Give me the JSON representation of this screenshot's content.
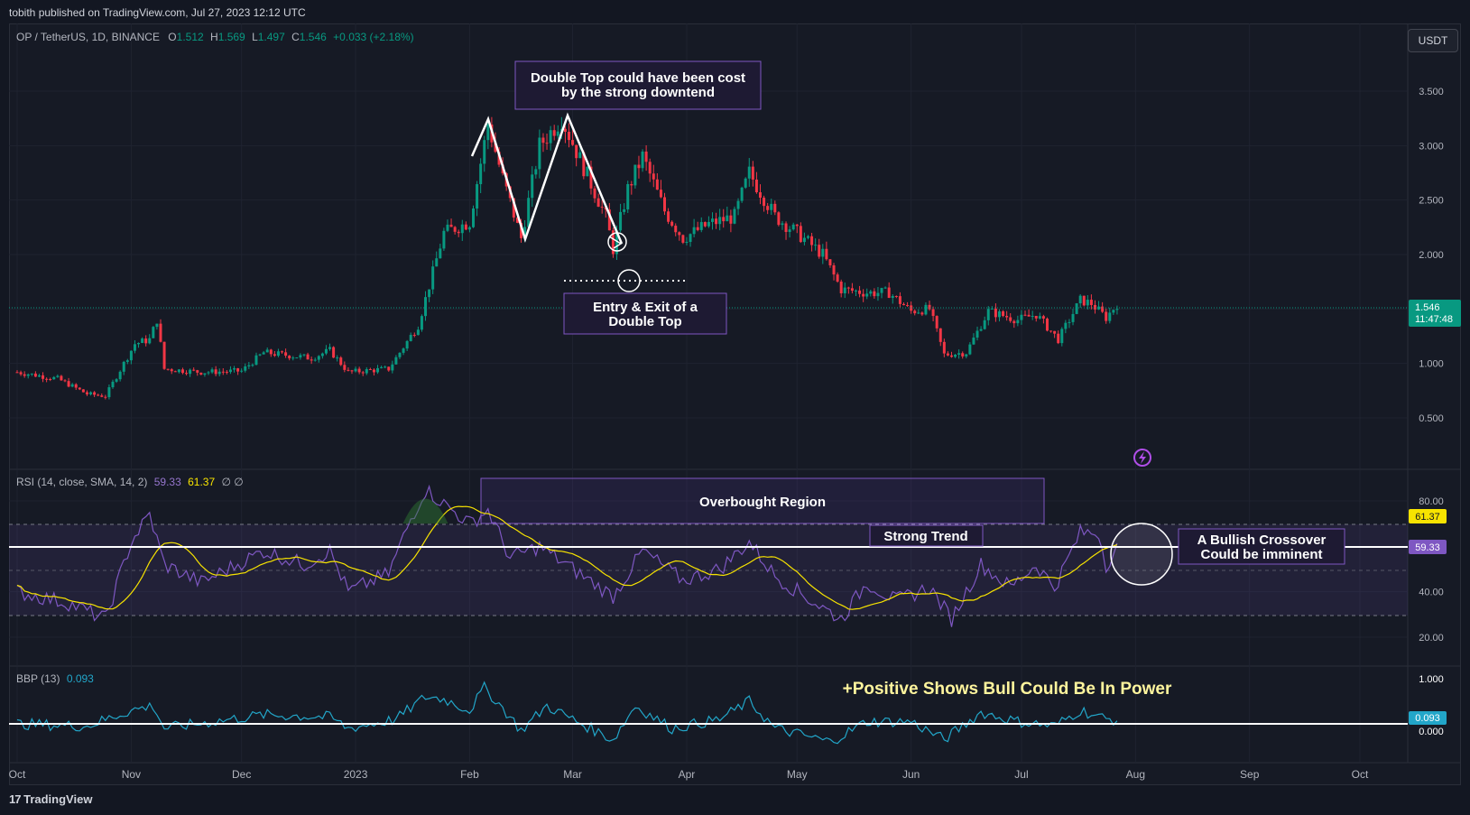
{
  "header": {
    "publisher": "tobith published on TradingView.com, Jul 27, 2023 12:12 UTC"
  },
  "symbol": {
    "name": "OP / TetherUS, 1D, BINANCE",
    "open_label": "O",
    "open": "1.512",
    "high_label": "H",
    "high": "1.569",
    "low_label": "L",
    "low": "1.497",
    "close_label": "C",
    "close": "1.546",
    "change": "+0.033 (+2.18%)"
  },
  "currency": "USDT",
  "price_badge": {
    "price": "1.546",
    "countdown": "11:47:48"
  },
  "annotations": {
    "double_top": "Double Top could have been cost by the strong downtend",
    "double_top_line1": "Double Top could have been cost",
    "double_top_line2": "by the strong downtend",
    "entry_exit_line1": "Entry & Exit of a",
    "entry_exit_line2": "Double Top",
    "overbought": "Overbought Region",
    "strong_trend": "Strong Trend",
    "crossover_line1": "A Bullish Crossover",
    "crossover_line2": "Could be imminent",
    "bbp_note": "+Positive Shows Bull Could Be In Power"
  },
  "rsi_legend": {
    "label": "RSI (14, close, SMA, 14, 2)",
    "value": "59.33",
    "ma": "61.37",
    "extra": "∅ ∅"
  },
  "bbp_legend": {
    "label": "BBP (13)",
    "value": "0.093"
  },
  "footer": {
    "brand": "TradingView"
  },
  "colors": {
    "up": "#089981",
    "down": "#f23645",
    "rsi": "#7e57c2",
    "rsi_ma": "#f7e300",
    "bbp": "#22a6c9",
    "bg": "#161a25"
  },
  "chart_data": [
    {
      "type": "candlestick",
      "title": "OP / TetherUS, 1D, BINANCE",
      "x_ticks": [
        "Oct",
        "Nov",
        "Dec",
        "2023",
        "Feb",
        "Mar",
        "Apr",
        "May",
        "Jun",
        "Jul",
        "Aug",
        "Sep",
        "Oct"
      ],
      "y_ticks": [
        "0.500",
        "1.000",
        "1.500",
        "2.000",
        "2.500",
        "3.000",
        "3.500"
      ],
      "ylim": [
        0.2,
        3.8
      ],
      "last_price": 1.546,
      "anchors": [
        [
          "2022-10-01",
          0.92
        ],
        [
          "2022-10-12",
          0.86
        ],
        [
          "2022-10-20",
          0.72
        ],
        [
          "2022-10-25",
          0.7
        ],
        [
          "2022-11-02",
          1.18
        ],
        [
          "2022-11-06",
          1.22
        ],
        [
          "2022-11-08",
          1.4
        ],
        [
          "2022-11-10",
          0.95
        ],
        [
          "2022-11-20",
          0.92
        ],
        [
          "2022-12-01",
          0.93
        ],
        [
          "2022-12-07",
          1.1
        ],
        [
          "2022-12-20",
          1.05
        ],
        [
          "2022-12-25",
          1.12
        ],
        [
          "2022-12-30",
          0.92
        ],
        [
          "2023-01-10",
          0.95
        ],
        [
          "2023-01-18",
          1.35
        ],
        [
          "2023-01-25",
          2.2
        ],
        [
          "2023-02-01",
          2.3
        ],
        [
          "2023-02-06",
          3.2
        ],
        [
          "2023-02-10",
          2.7
        ],
        [
          "2023-02-15",
          2.15
        ],
        [
          "2023-02-20",
          3.0
        ],
        [
          "2023-02-26",
          3.25
        ],
        [
          "2023-03-04",
          2.8
        ],
        [
          "2023-03-10",
          2.35
        ],
        [
          "2023-03-12",
          2.05
        ],
        [
          "2023-03-16",
          2.6
        ],
        [
          "2023-03-20",
          2.9
        ],
        [
          "2023-03-26",
          2.4
        ],
        [
          "2023-03-31",
          2.15
        ],
        [
          "2023-04-07",
          2.28
        ],
        [
          "2023-04-14",
          2.35
        ],
        [
          "2023-04-18",
          2.75
        ],
        [
          "2023-04-25",
          2.35
        ],
        [
          "2023-05-01",
          2.2
        ],
        [
          "2023-05-08",
          2.0
        ],
        [
          "2023-05-13",
          1.68
        ],
        [
          "2023-05-20",
          1.65
        ],
        [
          "2023-05-26",
          1.65
        ],
        [
          "2023-06-01",
          1.48
        ],
        [
          "2023-06-06",
          1.5
        ],
        [
          "2023-06-10",
          1.08
        ],
        [
          "2023-06-16",
          1.1
        ],
        [
          "2023-06-22",
          1.48
        ],
        [
          "2023-06-30",
          1.4
        ],
        [
          "2023-07-05",
          1.45
        ],
        [
          "2023-07-11",
          1.22
        ],
        [
          "2023-07-17",
          1.58
        ],
        [
          "2023-07-20",
          1.55
        ],
        [
          "2023-07-24",
          1.42
        ],
        [
          "2023-07-27",
          1.546
        ]
      ]
    },
    {
      "type": "line",
      "title": "RSI (14, close, SMA, 14, 2)",
      "series": [
        {
          "name": "RSI"
        },
        {
          "name": "RSI-based MA"
        }
      ],
      "y_ticks": [
        "20.00",
        "40.00",
        "60.00",
        "80.00"
      ],
      "ylim": [
        15,
        90
      ],
      "bands": [
        30,
        70
      ],
      "last_values": {
        "rsi": 59.33,
        "ma": 61.37
      },
      "anchors": [
        [
          "2022-10-01",
          40
        ],
        [
          "2022-10-15",
          35
        ],
        [
          "2022-10-25",
          28
        ],
        [
          "2022-11-01",
          62
        ],
        [
          "2022-11-06",
          74
        ],
        [
          "2022-11-10",
          52
        ],
        [
          "2022-11-20",
          44
        ],
        [
          "2022-12-07",
          58
        ],
        [
          "2022-12-18",
          52
        ],
        [
          "2022-12-25",
          58
        ],
        [
          "2022-12-30",
          40
        ],
        [
          "2023-01-10",
          48
        ],
        [
          "2023-01-16",
          72
        ],
        [
          "2023-01-20",
          85
        ],
        [
          "2023-02-01",
          70
        ],
        [
          "2023-02-06",
          76
        ],
        [
          "2023-02-12",
          55
        ],
        [
          "2023-02-20",
          60
        ],
        [
          "2023-03-01",
          50
        ],
        [
          "2023-03-12",
          38
        ],
        [
          "2023-03-20",
          58
        ],
        [
          "2023-03-31",
          45
        ],
        [
          "2023-04-10",
          50
        ],
        [
          "2023-04-18",
          62
        ],
        [
          "2023-04-25",
          47
        ],
        [
          "2023-05-05",
          36
        ],
        [
          "2023-05-13",
          28
        ],
        [
          "2023-05-20",
          44
        ],
        [
          "2023-05-28",
          36
        ],
        [
          "2023-06-06",
          42
        ],
        [
          "2023-06-12",
          28
        ],
        [
          "2023-06-20",
          52
        ],
        [
          "2023-06-28",
          42
        ],
        [
          "2023-07-05",
          52
        ],
        [
          "2023-07-10",
          42
        ],
        [
          "2023-07-17",
          66
        ],
        [
          "2023-07-22",
          66
        ],
        [
          "2023-07-24",
          52
        ],
        [
          "2023-07-27",
          59.33
        ]
      ]
    },
    {
      "type": "line",
      "title": "BBP (13)",
      "series": [
        {
          "name": "BBP"
        }
      ],
      "y_ticks": [
        "0.000",
        "1.000"
      ],
      "ylim": [
        -0.6,
        1.5
      ],
      "last_value": 0.093,
      "anchors": [
        [
          "2022-10-01",
          0.0
        ],
        [
          "2022-10-20",
          -0.05
        ],
        [
          "2022-11-01",
          0.3
        ],
        [
          "2022-11-07",
          0.4
        ],
        [
          "2022-11-10",
          -0.1
        ],
        [
          "2022-12-07",
          0.2
        ],
        [
          "2022-12-25",
          0.15
        ],
        [
          "2022-12-30",
          -0.1
        ],
        [
          "2023-01-12",
          0.1
        ],
        [
          "2023-01-20",
          0.6
        ],
        [
          "2023-01-25",
          0.55
        ],
        [
          "2023-02-01",
          0.3
        ],
        [
          "2023-02-05",
          0.8
        ],
        [
          "2023-02-10",
          0.35
        ],
        [
          "2023-02-15",
          -0.15
        ],
        [
          "2023-02-22",
          0.4
        ],
        [
          "2023-03-01",
          0.1
        ],
        [
          "2023-03-12",
          -0.35
        ],
        [
          "2023-03-18",
          0.4
        ],
        [
          "2023-03-28",
          -0.1
        ],
        [
          "2023-04-10",
          0.1
        ],
        [
          "2023-04-18",
          0.5
        ],
        [
          "2023-04-25",
          -0.1
        ],
        [
          "2023-05-10",
          -0.4
        ],
        [
          "2023-05-20",
          0.05
        ],
        [
          "2023-06-01",
          0.05
        ],
        [
          "2023-06-10",
          -0.35
        ],
        [
          "2023-06-20",
          0.25
        ],
        [
          "2023-06-30",
          0.05
        ],
        [
          "2023-07-10",
          -0.05
        ],
        [
          "2023-07-17",
          0.3
        ],
        [
          "2023-07-24",
          0.1
        ],
        [
          "2023-07-27",
          0.093
        ]
      ]
    }
  ]
}
